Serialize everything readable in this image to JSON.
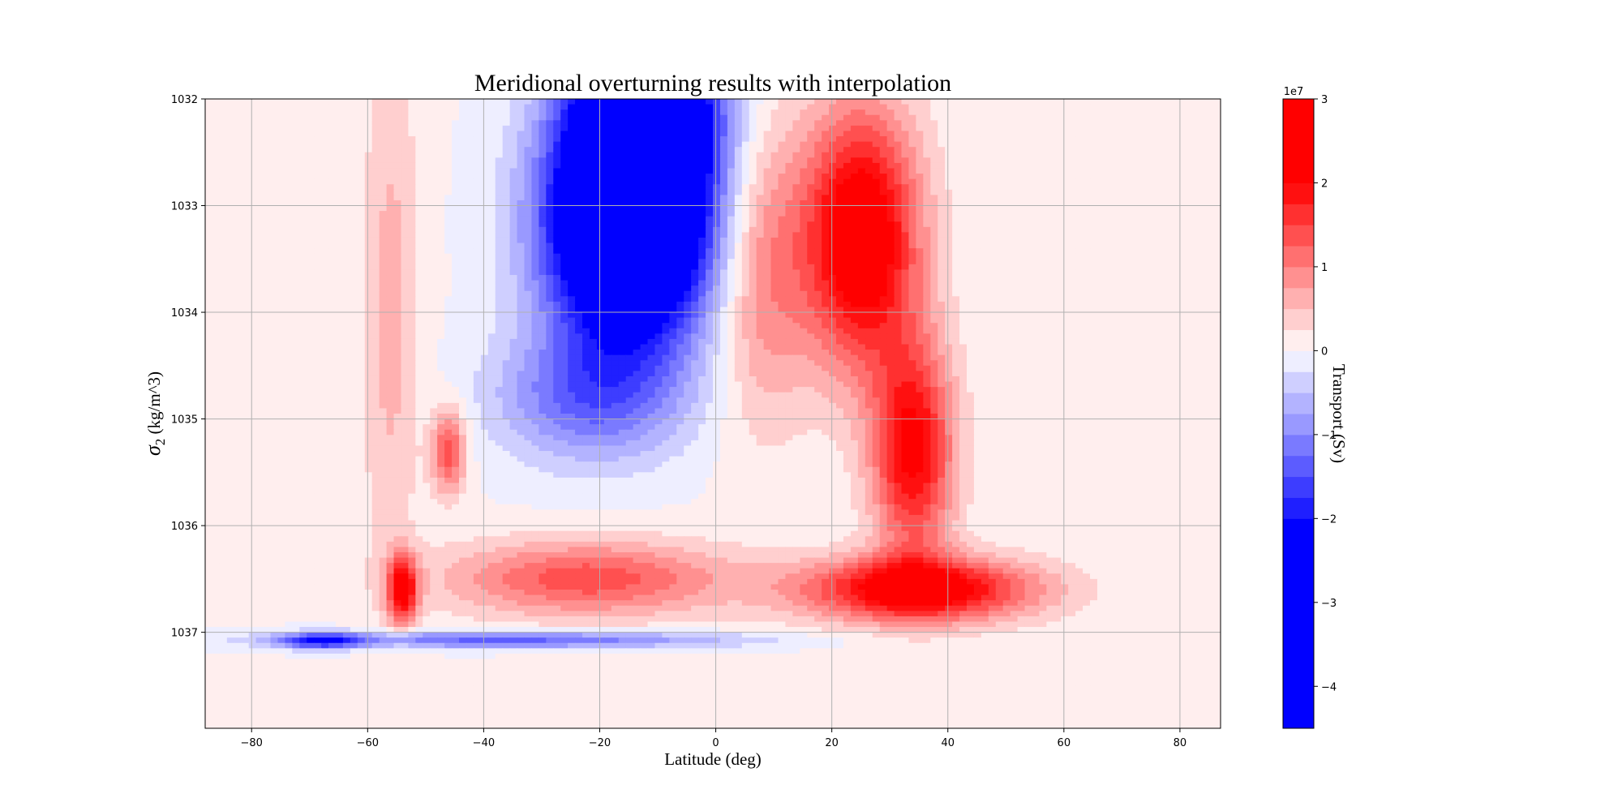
{
  "chart_data": {
    "type": "heatmap",
    "title": "Meridional overturning results with interpolation",
    "xlabel": "Latitude (deg)",
    "ylabel_symbol": "σ",
    "ylabel_subscript": "2",
    "ylabel_units": " (kg/m^3)",
    "xlim": [
      -88,
      87
    ],
    "ylim": [
      1037.9,
      1032
    ],
    "x_ticks": [
      -80,
      -60,
      -40,
      -20,
      0,
      20,
      40,
      60,
      80
    ],
    "x_tick_labels": [
      "−80",
      "−60",
      "−40",
      "−20",
      "0",
      "20",
      "40",
      "60",
      "80"
    ],
    "y_ticks": [
      1032,
      1033,
      1034,
      1035,
      1036,
      1037
    ],
    "y_tick_labels": [
      "1032",
      "1033",
      "1034",
      "1035",
      "1036",
      "1037"
    ],
    "grid": true,
    "colorbar": {
      "label": "Transport (Sv)",
      "exponent_label": "1e7",
      "range": [
        -4.5,
        3
      ],
      "levels": [
        -4.5,
        -2,
        -1.75,
        -1.5,
        -1.25,
        -1.0,
        -0.75,
        -0.5,
        -0.25,
        0,
        0.25,
        0.5,
        0.75,
        1.0,
        1.25,
        1.5,
        1.75,
        2.0,
        3
      ],
      "colors": [
        "#0000ff",
        "#1f1fff",
        "#3d3dff",
        "#5c5cff",
        "#7a7aff",
        "#9999ff",
        "#b3b3ff",
        "#cfcfff",
        "#eeeeff",
        "#ffeeee",
        "#ffcfcf",
        "#ffb0b0",
        "#ff9090",
        "#ff7070",
        "#ff5050",
        "#ff3030",
        "#ff1010",
        "#ff0000"
      ],
      "ticks": [
        -4,
        -3,
        -2,
        -1,
        0,
        1,
        2,
        3
      ],
      "tick_labels": [
        "−4",
        "−3",
        "−2",
        "−1",
        "0",
        "1",
        "2",
        "3"
      ]
    },
    "features": [
      {
        "name": "tropical-negative-cell",
        "lat": -15,
        "sigma": 1033.2,
        "value": -4.5,
        "lat_halfwidth": 14,
        "sigma_halfwidth": 1.1
      },
      {
        "name": "tropical-negative-upper",
        "lat": -12,
        "sigma": 1032.0,
        "value": -3.5,
        "lat_halfwidth": 12,
        "sigma_halfwidth": 0.9
      },
      {
        "name": "tropical-negative-fringe",
        "lat": -22,
        "sigma": 1034.8,
        "value": -1.2,
        "lat_halfwidth": 16,
        "sigma_halfwidth": 0.6
      },
      {
        "name": "northern-positive-cell",
        "lat": 25,
        "sigma": 1033.3,
        "value": 2.6,
        "lat_halfwidth": 10,
        "sigma_halfwidth": 1.2
      },
      {
        "name": "northern-positive-tongue",
        "lat": 34,
        "sigma": 1035.3,
        "value": 2.1,
        "lat_halfwidth": 7,
        "sigma_halfwidth": 1.0
      },
      {
        "name": "northern-positive-shoulder",
        "lat": 8,
        "sigma": 1033.6,
        "value": 1.0,
        "lat_halfwidth": 8,
        "sigma_halfwidth": 1.4
      },
      {
        "name": "deep-positive-north",
        "lat": 35,
        "sigma": 1036.6,
        "value": 2.4,
        "lat_halfwidth": 20,
        "sigma_halfwidth": 0.3
      },
      {
        "name": "deep-positive-south",
        "lat": -22,
        "sigma": 1036.5,
        "value": 1.4,
        "lat_halfwidth": 24,
        "sigma_halfwidth": 0.35
      },
      {
        "name": "southern-positive-core",
        "lat": -54,
        "sigma": 1036.6,
        "value": 2.2,
        "lat_halfwidth": 2.5,
        "sigma_halfwidth": 0.3
      },
      {
        "name": "southern-positive-column",
        "lat": -56,
        "sigma": 1034.0,
        "value": 0.6,
        "lat_halfwidth": 5,
        "sigma_halfwidth": 2.5
      },
      {
        "name": "southern-positive-patch",
        "lat": -46,
        "sigma": 1035.3,
        "value": 1.4,
        "lat_halfwidth": 3,
        "sigma_halfwidth": 0.4
      },
      {
        "name": "bottom-negative-band",
        "lat": -35,
        "sigma": 1037.07,
        "value": -1.4,
        "lat_halfwidth": 38,
        "sigma_halfwidth": 0.08
      },
      {
        "name": "bottom-negative-west",
        "lat": -68,
        "sigma": 1037.08,
        "value": -1.7,
        "lat_halfwidth": 7,
        "sigma_halfwidth": 0.07
      }
    ]
  }
}
